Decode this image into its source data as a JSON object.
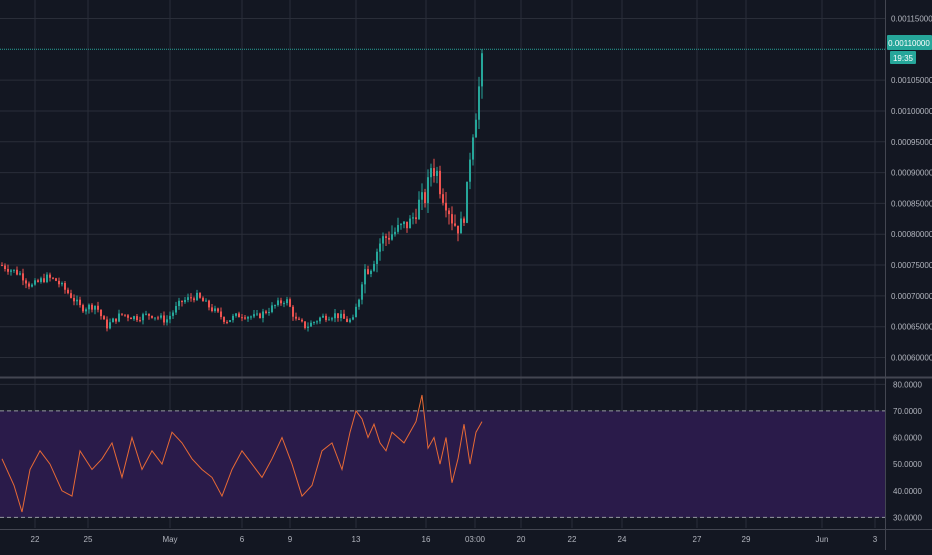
{
  "colors": {
    "background": "#131722",
    "grid": "#2a2e39",
    "axis_text": "#b2b5be",
    "candle_up": "#26a69a",
    "candle_down": "#ef5350",
    "last_price_line": "#26a69a",
    "rsi_line": "#e86a35",
    "rsi_band": "#2a1b4a",
    "rsi_band_line": "#9598a1",
    "separator": "#434651"
  },
  "last_price_label": {
    "value": "0.00110000",
    "countdown": "19:35"
  },
  "chart_data": [
    {
      "type": "candlestick",
      "title": "",
      "x_tick_labels": [
        "22",
        "25",
        "May",
        "6",
        "9",
        "13",
        "16",
        "03:00",
        "20",
        "22",
        "24",
        "27",
        "29",
        "Jun",
        "3"
      ],
      "y_tick_labels": [
        "0.00060000",
        "0.00065000",
        "0.00070000",
        "0.00075000",
        "0.00080000",
        "0.00085000",
        "0.00090000",
        "0.00095000",
        "0.00100000",
        "0.00105000",
        "0.00115000"
      ],
      "ylim": [
        0.00057,
        0.00118
      ],
      "last_price": 0.0011,
      "grid": true,
      "series_close_path": [
        [
          0,
          0.00075
        ],
        [
          20,
          0.000735
        ],
        [
          30,
          0.000715
        ],
        [
          45,
          0.00073
        ],
        [
          55,
          0.000725
        ],
        [
          70,
          0.0007
        ],
        [
          80,
          0.00068
        ],
        [
          95,
          0.000685
        ],
        [
          105,
          0.00065
        ],
        [
          120,
          0.00067
        ],
        [
          135,
          0.000665
        ],
        [
          150,
          0.00067
        ],
        [
          165,
          0.00066
        ],
        [
          180,
          0.00069
        ],
        [
          195,
          0.0007
        ],
        [
          210,
          0.00068
        ],
        [
          225,
          0.00066
        ],
        [
          240,
          0.00067
        ],
        [
          255,
          0.000665
        ],
        [
          270,
          0.00068
        ],
        [
          285,
          0.000695
        ],
        [
          295,
          0.00066
        ],
        [
          305,
          0.00065
        ],
        [
          320,
          0.000665
        ],
        [
          335,
          0.00067
        ],
        [
          345,
          0.00066
        ],
        [
          352,
          0.00066
        ],
        [
          358,
          0.0007
        ],
        [
          362,
          0.00074
        ],
        [
          370,
          0.00075
        ],
        [
          380,
          0.00079
        ],
        [
          390,
          0.0008
        ],
        [
          400,
          0.00081
        ],
        [
          410,
          0.00082
        ],
        [
          418,
          0.00085
        ],
        [
          425,
          0.00086
        ],
        [
          430,
          0.00091
        ],
        [
          436,
          0.0009
        ],
        [
          440,
          0.00087
        ],
        [
          446,
          0.00085
        ],
        [
          452,
          0.00082
        ],
        [
          458,
          0.00081
        ],
        [
          462,
          0.00082
        ],
        [
          466,
          0.00087
        ],
        [
          470,
          0.00095
        ],
        [
          475,
          0.001
        ],
        [
          479,
          0.00105
        ],
        [
          482,
          0.00109
        ]
      ]
    },
    {
      "type": "line",
      "title": "",
      "y_tick_labels": [
        "30.0000",
        "40.0000",
        "50.0000",
        "60.0000",
        "70.0000",
        "80.0000"
      ],
      "ylim": [
        26,
        82
      ],
      "band": [
        30,
        70
      ],
      "grid": true,
      "x": [
        2,
        14,
        22,
        30,
        40,
        50,
        62,
        72,
        80,
        92,
        102,
        112,
        122,
        132,
        142,
        152,
        162,
        172,
        182,
        192,
        202,
        212,
        222,
        232,
        242,
        252,
        262,
        272,
        282,
        292,
        302,
        312,
        322,
        332,
        342,
        350,
        356,
        362,
        368,
        374,
        380,
        386,
        392,
        398,
        404,
        410,
        416,
        422,
        428,
        434,
        440,
        446,
        452,
        458,
        464,
        470,
        476,
        482
      ],
      "values": [
        52,
        42,
        32,
        48,
        55,
        50,
        40,
        38,
        55,
        48,
        52,
        58,
        45,
        60,
        48,
        55,
        50,
        62,
        58,
        52,
        48,
        45,
        38,
        48,
        55,
        50,
        45,
        52,
        60,
        50,
        38,
        42,
        55,
        58,
        48,
        62,
        70,
        67,
        60,
        65,
        58,
        55,
        62,
        60,
        58,
        62,
        66,
        76,
        56,
        60,
        50,
        60,
        43,
        52,
        65,
        50,
        62,
        66
      ]
    }
  ]
}
